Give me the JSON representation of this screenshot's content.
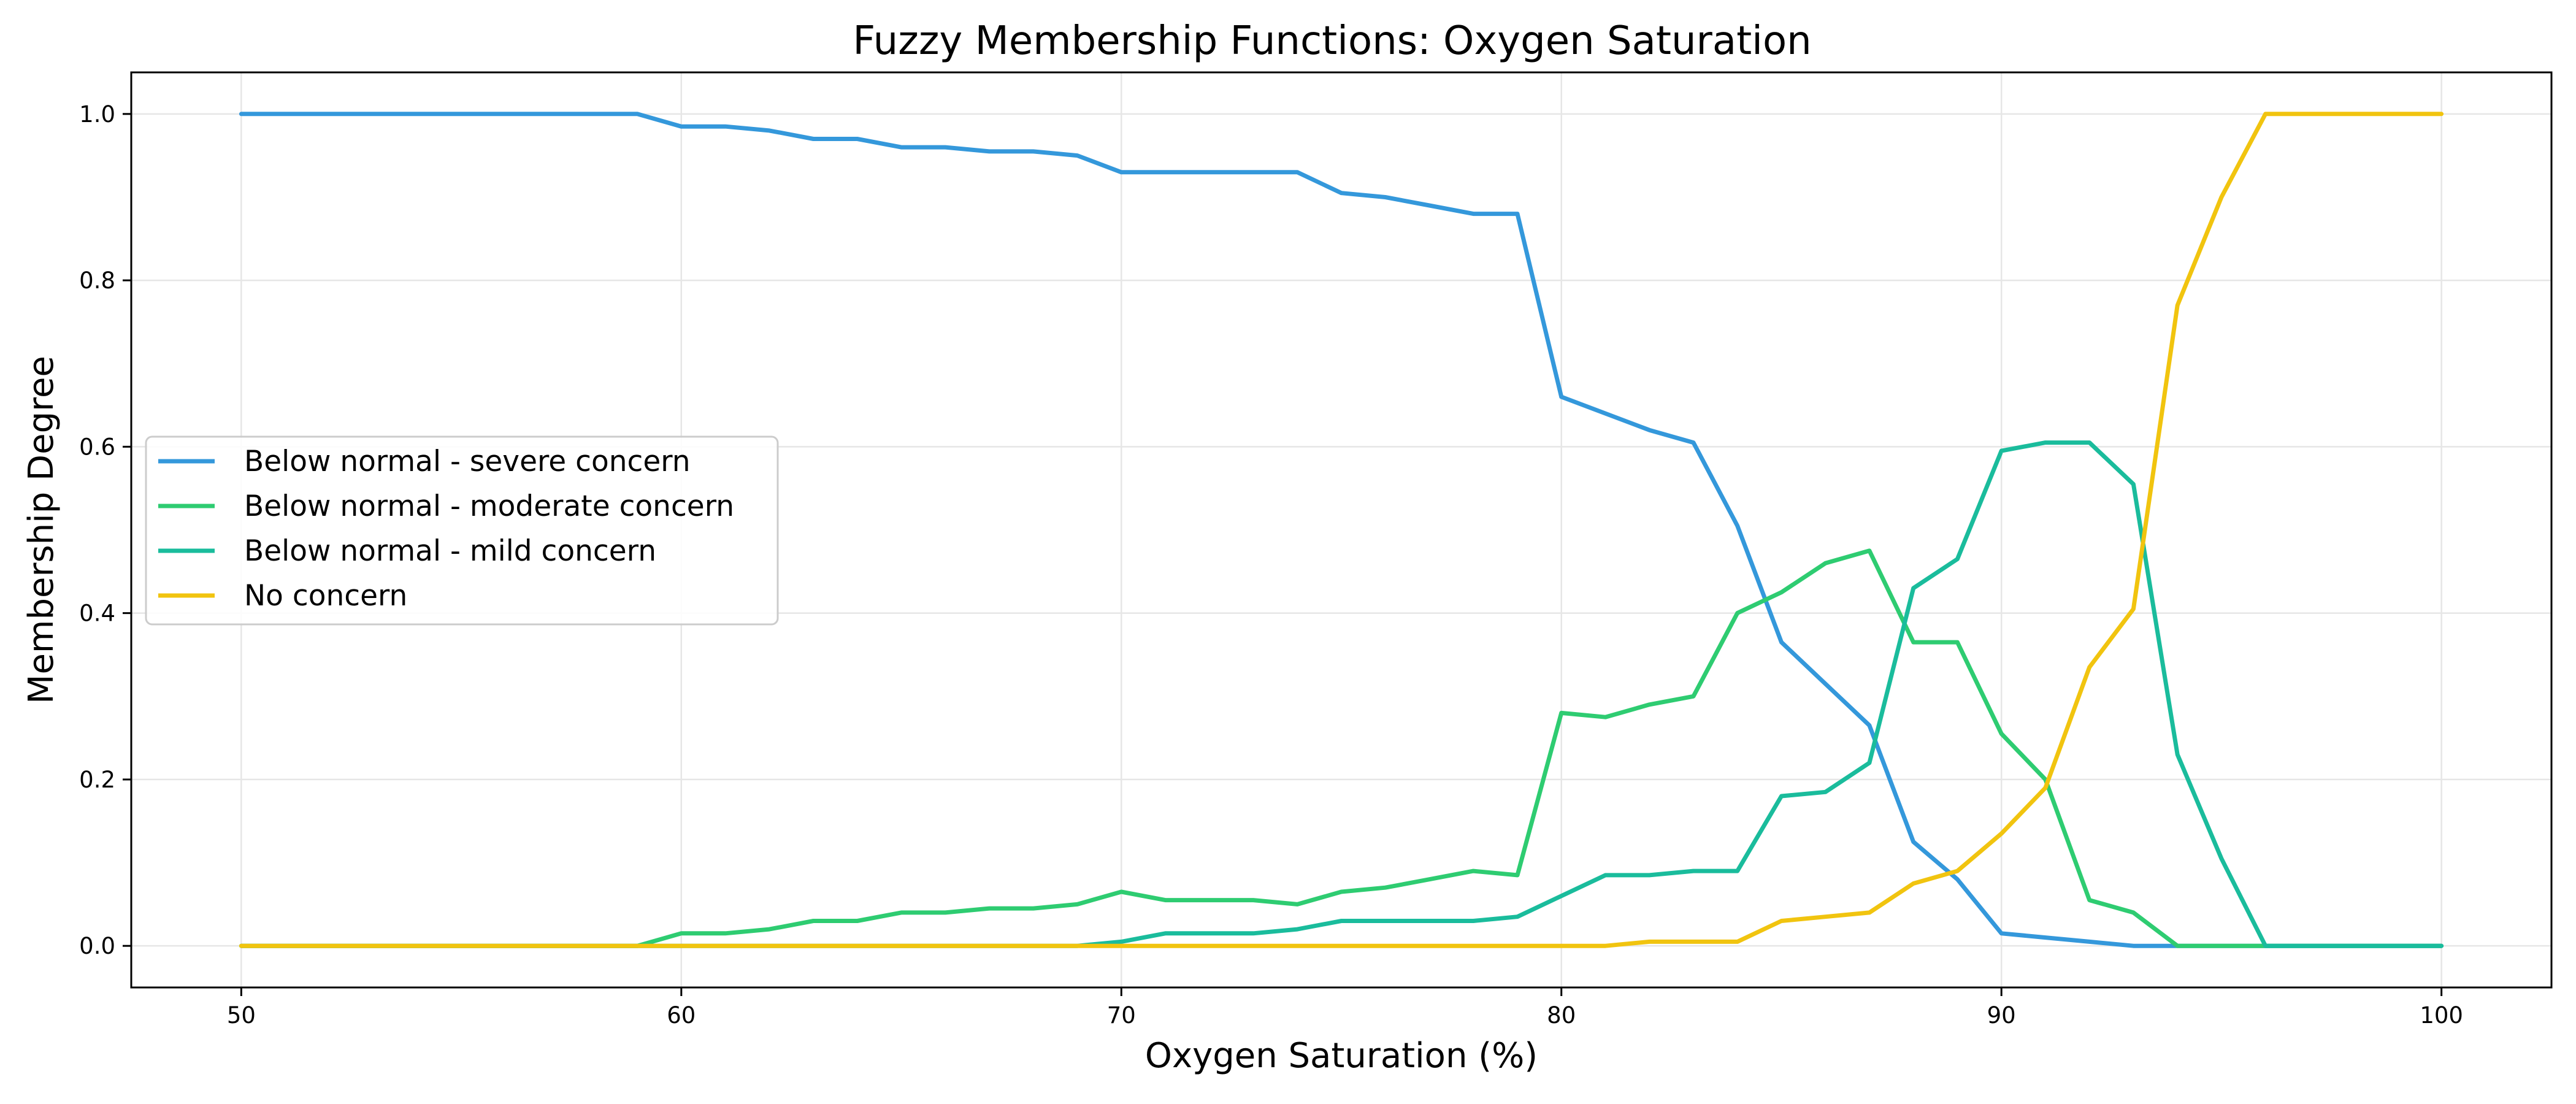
{
  "chart_data": {
    "type": "line",
    "title": "Fuzzy Membership Functions: Oxygen Saturation",
    "xlabel": "Oxygen Saturation (%)",
    "ylabel": "Membership Degree",
    "xlim": [
      47.5,
      102.5
    ],
    "ylim": [
      -0.05,
      1.05
    ],
    "xticks": [
      50,
      60,
      70,
      80,
      90,
      100
    ],
    "yticks": [
      0.0,
      0.2,
      0.4,
      0.6,
      0.8,
      1.0
    ],
    "ytick_labels": [
      "0.0",
      "0.2",
      "0.4",
      "0.6",
      "0.8",
      "1.0"
    ],
    "grid": true,
    "legend_position": "center-left",
    "x": [
      50,
      51,
      52,
      53,
      54,
      55,
      56,
      57,
      58,
      59,
      60,
      61,
      62,
      63,
      64,
      65,
      66,
      67,
      68,
      69,
      70,
      71,
      72,
      73,
      74,
      75,
      76,
      77,
      78,
      79,
      80,
      81,
      82,
      83,
      84,
      85,
      86,
      87,
      88,
      89,
      90,
      91,
      92,
      93,
      94,
      95,
      96,
      97,
      98,
      99,
      100
    ],
    "series": [
      {
        "name": "Below normal - severe concern",
        "color": "#3498db",
        "values": [
          1.0,
          1.0,
          1.0,
          1.0,
          1.0,
          1.0,
          1.0,
          1.0,
          1.0,
          1.0,
          0.985,
          0.985,
          0.98,
          0.97,
          0.97,
          0.96,
          0.96,
          0.955,
          0.955,
          0.95,
          0.93,
          0.93,
          0.93,
          0.93,
          0.93,
          0.905,
          0.9,
          0.89,
          0.88,
          0.88,
          0.66,
          0.64,
          0.62,
          0.605,
          0.505,
          0.365,
          0.315,
          0.265,
          0.125,
          0.08,
          0.015,
          0.01,
          0.005,
          0.0,
          0.0,
          0.0,
          0.0,
          0.0,
          0.0,
          0.0,
          0.0
        ]
      },
      {
        "name": "Below normal - moderate concern",
        "color": "#2ecc71",
        "values": [
          0.0,
          0.0,
          0.0,
          0.0,
          0.0,
          0.0,
          0.0,
          0.0,
          0.0,
          0.0,
          0.015,
          0.015,
          0.02,
          0.03,
          0.03,
          0.04,
          0.04,
          0.045,
          0.045,
          0.05,
          0.065,
          0.055,
          0.055,
          0.055,
          0.05,
          0.065,
          0.07,
          0.08,
          0.09,
          0.085,
          0.28,
          0.275,
          0.29,
          0.3,
          0.4,
          0.425,
          0.46,
          0.475,
          0.365,
          0.365,
          0.255,
          0.2,
          0.055,
          0.04,
          0.0,
          0.0,
          0.0,
          0.0,
          0.0,
          0.0,
          0.0
        ]
      },
      {
        "name": "Below normal - mild concern",
        "color": "#1abc9c",
        "values": [
          0.0,
          0.0,
          0.0,
          0.0,
          0.0,
          0.0,
          0.0,
          0.0,
          0.0,
          0.0,
          0.0,
          0.0,
          0.0,
          0.0,
          0.0,
          0.0,
          0.0,
          0.0,
          0.0,
          0.0,
          0.005,
          0.015,
          0.015,
          0.015,
          0.02,
          0.03,
          0.03,
          0.03,
          0.03,
          0.035,
          0.06,
          0.085,
          0.085,
          0.09,
          0.09,
          0.18,
          0.185,
          0.22,
          0.43,
          0.465,
          0.595,
          0.605,
          0.605,
          0.555,
          0.23,
          0.105,
          0.0,
          0.0,
          0.0,
          0.0,
          0.0
        ]
      },
      {
        "name": "No concern",
        "color": "#f1c40f",
        "values": [
          0.0,
          0.0,
          0.0,
          0.0,
          0.0,
          0.0,
          0.0,
          0.0,
          0.0,
          0.0,
          0.0,
          0.0,
          0.0,
          0.0,
          0.0,
          0.0,
          0.0,
          0.0,
          0.0,
          0.0,
          0.0,
          0.0,
          0.0,
          0.0,
          0.0,
          0.0,
          0.0,
          0.0,
          0.0,
          0.0,
          0.0,
          0.0,
          0.005,
          0.005,
          0.005,
          0.03,
          0.035,
          0.04,
          0.075,
          0.09,
          0.135,
          0.19,
          0.335,
          0.405,
          0.77,
          0.9,
          1.0,
          1.0,
          1.0,
          1.0,
          1.0
        ]
      }
    ]
  }
}
